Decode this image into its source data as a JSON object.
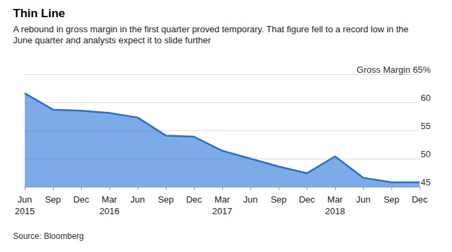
{
  "chart_data": {
    "type": "area",
    "title": "Thin Line",
    "subtitle": "A rebound in gross margin in the first quarter proved temporary. That figure fell to a record low in the June quarter and analysts expect it to slide further",
    "source": "Source: Bloomberg",
    "categories": [
      "Jun\n2015",
      "Sep",
      "Dec",
      "Mar\n2016",
      "Jun",
      "Sep",
      "Dec",
      "Mar\n2017",
      "Jun",
      "Sep",
      "Dec",
      "Mar\n2018",
      "Jun",
      "Sep",
      "Dec"
    ],
    "values": [
      61.6,
      58.7,
      58.5,
      58.1,
      57.3,
      54.1,
      53.9,
      51.4,
      50.0,
      48.6,
      47.4,
      50.4,
      46.6,
      45.8,
      45.8
    ],
    "color": "#1f6fd8",
    "ylim": [
      45,
      65
    ],
    "yticks": [
      45,
      50,
      55,
      60,
      {
        "value": 65,
        "label": "Gross Margin 65%"
      }
    ],
    "grid": true
  }
}
